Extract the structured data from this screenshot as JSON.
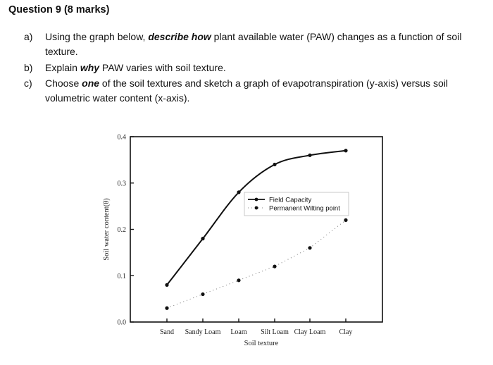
{
  "heading": "Question 9 (8 marks)",
  "questions": [
    {
      "letter": "a)",
      "pre": "Using the graph below, ",
      "emph": "describe how",
      "post": " plant available water (PAW) changes as a function of soil texture."
    },
    {
      "letter": "b)",
      "pre": "Explain ",
      "emph": "why",
      "post": " PAW varies with soil texture."
    },
    {
      "letter": "c)",
      "pre": "Choose ",
      "emph": "one",
      "post": " of the soil textures and sketch a graph of evapotranspiration (y-axis) versus soil volumetric water content (x-axis)."
    }
  ],
  "chart_data": {
    "type": "line",
    "categories": [
      "Sand",
      "Sandy Loam",
      "Loam",
      "Silt Loam",
      "Clay Loam",
      "Clay"
    ],
    "series": [
      {
        "name": "Field Capacity",
        "values": [
          0.08,
          0.18,
          0.28,
          0.34,
          0.36,
          0.37
        ],
        "style": "solid"
      },
      {
        "name": "Permanent Wilting point",
        "values": [
          0.03,
          0.06,
          0.09,
          0.12,
          0.16,
          0.22
        ],
        "style": "dotted"
      }
    ],
    "xlabel": "Soil texture",
    "ylabel": "Soil water content(θ)",
    "yticks": [
      "0.0",
      "0.1",
      "0.2",
      "0.3",
      "0.4"
    ],
    "ylim": [
      0,
      0.4
    ],
    "legend": "upper-right inside plot",
    "grid": false
  }
}
